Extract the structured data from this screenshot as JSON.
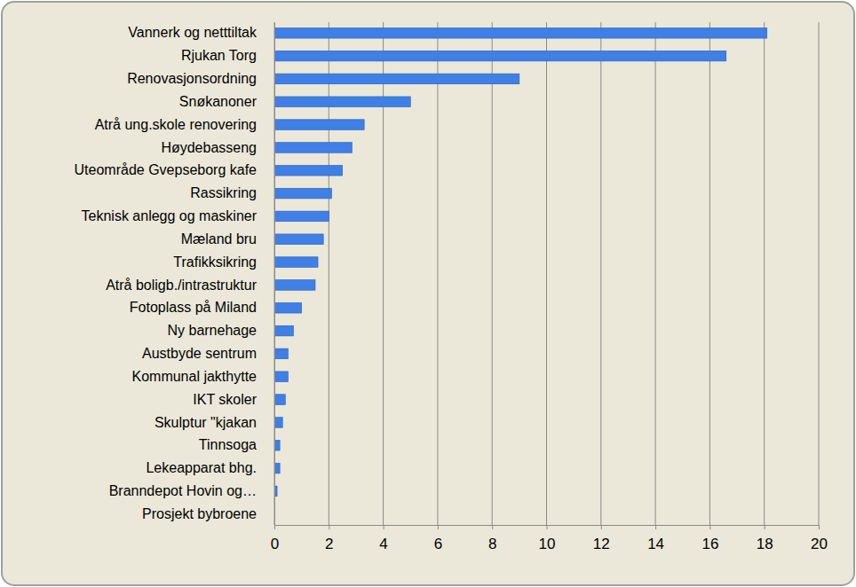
{
  "chart_data": {
    "type": "bar",
    "orientation": "horizontal",
    "categories": [
      "Vannerk og netttiltak",
      "Rjukan Torg",
      "Renovasjonsordning",
      "Snøkanoner",
      "Atrå ung.skole renovering",
      "Høydebasseng",
      "Uteområde Gvepseborg kafe",
      "Rassikring",
      "Teknisk anlegg og maskiner",
      "Mæland bru",
      "Trafikksikring",
      "Atrå boligb./intrastruktur",
      "Fotoplass på Miland",
      "Ny barnehage",
      "Austbyde sentrum",
      "Kommunal jakthytte",
      "IKT skoler",
      "Skulptur \"kjakan",
      "Tinnsoga",
      "Lekeapparat bhg.",
      "Branndepot Hovin og…",
      "Prosjekt bybroene"
    ],
    "values": [
      18.1,
      16.6,
      9.0,
      5.0,
      3.3,
      2.85,
      2.5,
      2.1,
      2.0,
      1.8,
      1.6,
      1.5,
      1.0,
      0.7,
      0.5,
      0.5,
      0.4,
      0.3,
      0.2,
      0.2,
      0.1,
      0
    ],
    "color": "#3f7fe6",
    "xlim": [
      0,
      20
    ],
    "xticks": [
      0,
      2,
      4,
      6,
      8,
      10,
      12,
      14,
      16,
      18,
      20
    ],
    "grid": true
  }
}
